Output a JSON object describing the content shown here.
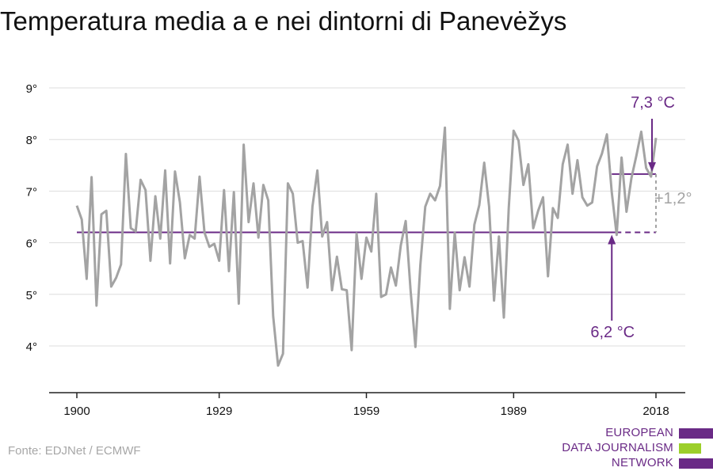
{
  "title": "Temperatura media a e nei dintorni di Panevėžys",
  "source": "Fonte: EDJNet / ECMWF",
  "logo": {
    "line1": "EUROPEAN",
    "line2": "DATA JOURNALISM",
    "line3": "NETWORK",
    "colors": {
      "purple": "#6a2a86",
      "green": "#9ccf2a"
    }
  },
  "colors": {
    "line": "#a3a3a3",
    "baseline": "#6a2a86",
    "accent": "#6a2a86",
    "diff": "#a3a3a3",
    "grid": "#dddddd"
  },
  "chart_data": {
    "type": "line",
    "title": "Temperatura media a e nei dintorni di Panevėžys",
    "xlabel": "",
    "ylabel": "",
    "xlim": [
      1900,
      2018
    ],
    "ylim": [
      3.0,
      9.2
    ],
    "grid": true,
    "x_ticks": [
      1900,
      1929,
      1959,
      1989,
      2018
    ],
    "x_tick_labels": [
      "1900",
      "1929",
      "1959",
      "1989",
      "2018"
    ],
    "y_ticks": [
      4,
      5,
      6,
      7,
      8,
      9
    ],
    "y_tick_labels": [
      "4°",
      "5°",
      "6°",
      "7°",
      "8°",
      "9°"
    ],
    "series": [
      {
        "x_start": 1900,
        "values": [
          6.72,
          6.45,
          5.3,
          7.27,
          4.78,
          6.55,
          6.62,
          5.15,
          5.32,
          5.58,
          7.72,
          6.28,
          6.22,
          7.22,
          7.02,
          5.65,
          6.9,
          6.08,
          7.4,
          5.6,
          7.38,
          6.78,
          5.7,
          6.15,
          6.08,
          7.28,
          6.2,
          5.92,
          5.98,
          5.65,
          7.02,
          5.45,
          6.98,
          4.82,
          7.9,
          6.4,
          7.15,
          6.1,
          7.12,
          6.82,
          4.58,
          3.62,
          3.85,
          7.15,
          6.95,
          6.0,
          6.03,
          5.13,
          6.7,
          7.4,
          6.12,
          6.4,
          5.08,
          5.73,
          5.1,
          5.08,
          3.92,
          6.18,
          5.3,
          6.1,
          5.83,
          6.95,
          4.95,
          5.0,
          5.52,
          5.17,
          5.95,
          6.42,
          5.07,
          3.98,
          5.57,
          6.7,
          6.95,
          6.82,
          7.1,
          8.23,
          4.72,
          6.2,
          5.08,
          5.72,
          5.15,
          6.35,
          6.73,
          7.55,
          6.7,
          4.88,
          6.12,
          4.55,
          6.68,
          8.17,
          7.98,
          7.12,
          7.52,
          6.28,
          6.62,
          6.88,
          5.35,
          6.67,
          6.48,
          7.52,
          7.9,
          6.95,
          7.6,
          6.88,
          6.72,
          6.78,
          7.48,
          7.73,
          8.1,
          6.98,
          6.15,
          7.65,
          6.6,
          7.25,
          7.68,
          8.15,
          7.45,
          7.28,
          8.03
        ]
      }
    ],
    "baseline": {
      "value": 6.2,
      "from": 1900,
      "to": 2018,
      "label": "6,2 °C"
    },
    "recent": {
      "value": 7.33,
      "from": 2009,
      "to": 2018,
      "label": "7,3 °C"
    },
    "difference_label": "+1,2°"
  }
}
